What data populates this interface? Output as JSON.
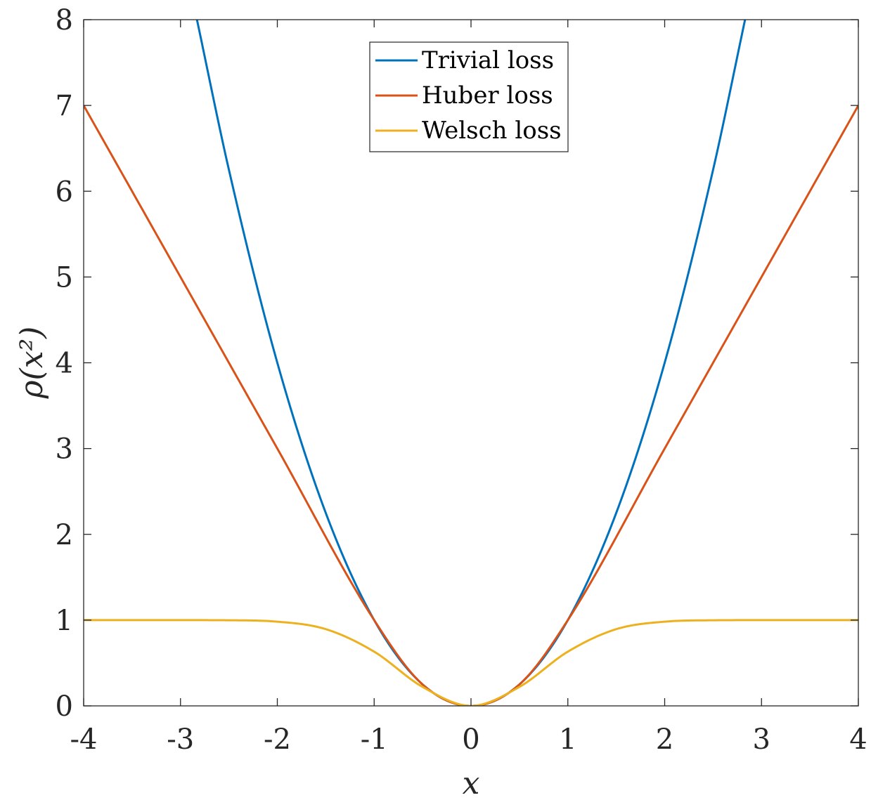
{
  "chart_data": {
    "type": "line",
    "title": "",
    "xlabel": "x",
    "ylabel": "ρ(x²)",
    "xlim": [
      -4,
      4
    ],
    "ylim": [
      0,
      8
    ],
    "x_ticks": [
      "-4",
      "-3",
      "-2",
      "-1",
      "0",
      "1",
      "2",
      "3",
      "4"
    ],
    "y_ticks": [
      "0",
      "1",
      "2",
      "3",
      "4",
      "5",
      "6",
      "7",
      "8"
    ],
    "grid": false,
    "legend_position": "top-center",
    "series": [
      {
        "name": "Trivial loss",
        "color": "#0072BD",
        "x": [
          -2.83,
          -2.5,
          -2.0,
          -1.5,
          -1.0,
          -0.5,
          0,
          0.5,
          1.0,
          1.5,
          2.0,
          2.5,
          2.83
        ],
        "y": [
          8.0,
          6.25,
          4.0,
          2.25,
          1.0,
          0.25,
          0,
          0.25,
          1.0,
          2.25,
          4.0,
          6.25,
          8.0
        ]
      },
      {
        "name": "Huber loss",
        "color": "#D95319",
        "x": [
          -4,
          -3,
          -2,
          -1,
          -0.5,
          0,
          0.5,
          1,
          2,
          3,
          4
        ],
        "y": [
          7,
          5,
          3,
          1,
          0.25,
          0,
          0.25,
          1,
          3,
          5,
          7
        ]
      },
      {
        "name": "Welsch loss",
        "color": "#EDB120",
        "x": [
          -4,
          -3,
          -2.5,
          -2,
          -1.5,
          -1,
          -0.5,
          0,
          0.5,
          1,
          1.5,
          2,
          2.5,
          3,
          4
        ],
        "y": [
          1.0,
          0.9999,
          0.9981,
          0.9817,
          0.8946,
          0.6321,
          0.2212,
          0,
          0.2212,
          0.6321,
          0.8946,
          0.9817,
          0.9981,
          0.9999,
          1.0
        ]
      }
    ]
  }
}
